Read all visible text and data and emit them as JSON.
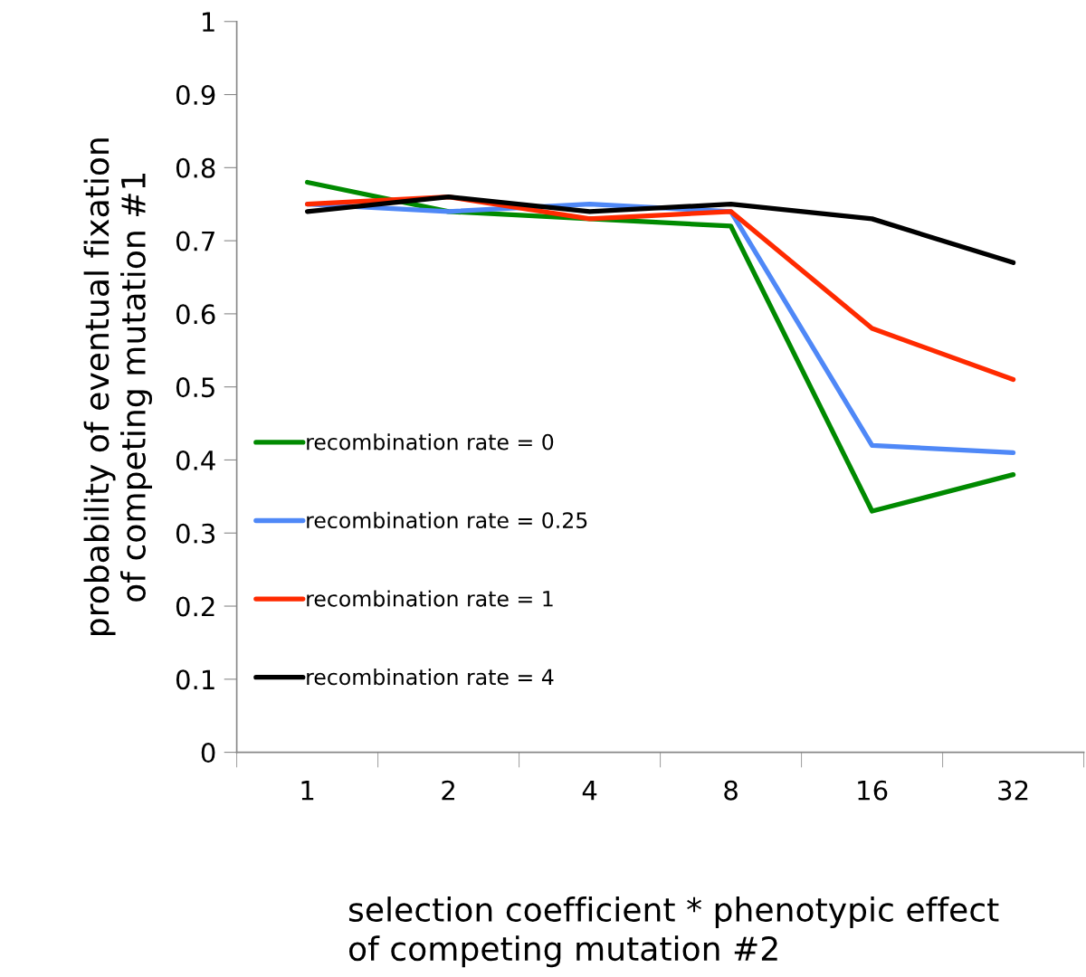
{
  "chart_data": {
    "type": "line",
    "xlabel": "selection coefficient * phenotypic effect\nof competing mutation #2",
    "ylabel": "probability of eventual fixation\nof competing mutation #1",
    "categories": [
      "1",
      "2",
      "4",
      "8",
      "16",
      "32"
    ],
    "series": [
      {
        "name": "recombination rate = 0",
        "color": "#008a00",
        "values": [
          0.78,
          0.74,
          0.73,
          0.72,
          0.33,
          0.38
        ]
      },
      {
        "name": "recombination rate = 0.25",
        "color": "#4f88f7",
        "values": [
          0.75,
          0.74,
          0.75,
          0.74,
          0.42,
          0.41
        ]
      },
      {
        "name": "recombination rate = 1",
        "color": "#ff2a00",
        "values": [
          0.75,
          0.76,
          0.73,
          0.74,
          0.58,
          0.51
        ]
      },
      {
        "name": "recombination rate = 4",
        "color": "#000000",
        "values": [
          0.74,
          0.76,
          0.74,
          0.75,
          0.73,
          0.67
        ]
      }
    ],
    "ylim": [
      0,
      1
    ],
    "yticks": [
      0,
      0.1,
      0.2,
      0.3,
      0.4,
      0.5,
      0.6,
      0.7,
      0.8,
      0.9,
      1
    ],
    "grid": false,
    "legend": "left",
    "marker": "none",
    "line_style": "solid"
  }
}
